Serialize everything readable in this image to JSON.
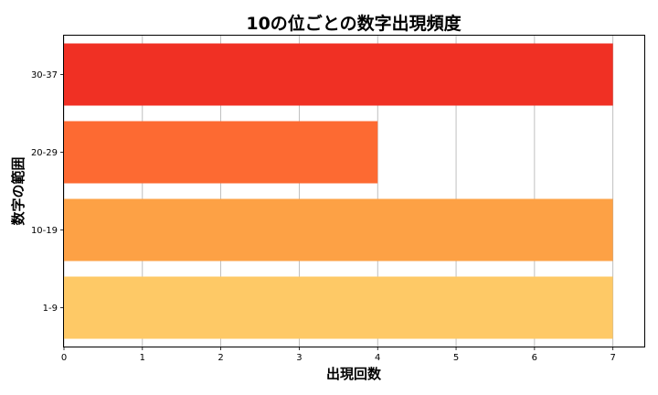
{
  "chart_data": {
    "type": "bar",
    "orientation": "horizontal",
    "title": "10の位ごとの数字出現頻度",
    "xlabel": "出現回数",
    "ylabel": "数字の範囲",
    "categories": [
      "1-9",
      "10-19",
      "20-29",
      "30-37"
    ],
    "values": [
      7,
      7,
      4,
      7
    ],
    "colors": [
      "#fec966",
      "#fda145",
      "#fd6a32",
      "#f03024"
    ],
    "xlim": [
      0,
      7.4
    ],
    "xticks": [
      "0",
      "1",
      "2",
      "3",
      "4",
      "5",
      "6",
      "7"
    ],
    "grid": "x"
  }
}
